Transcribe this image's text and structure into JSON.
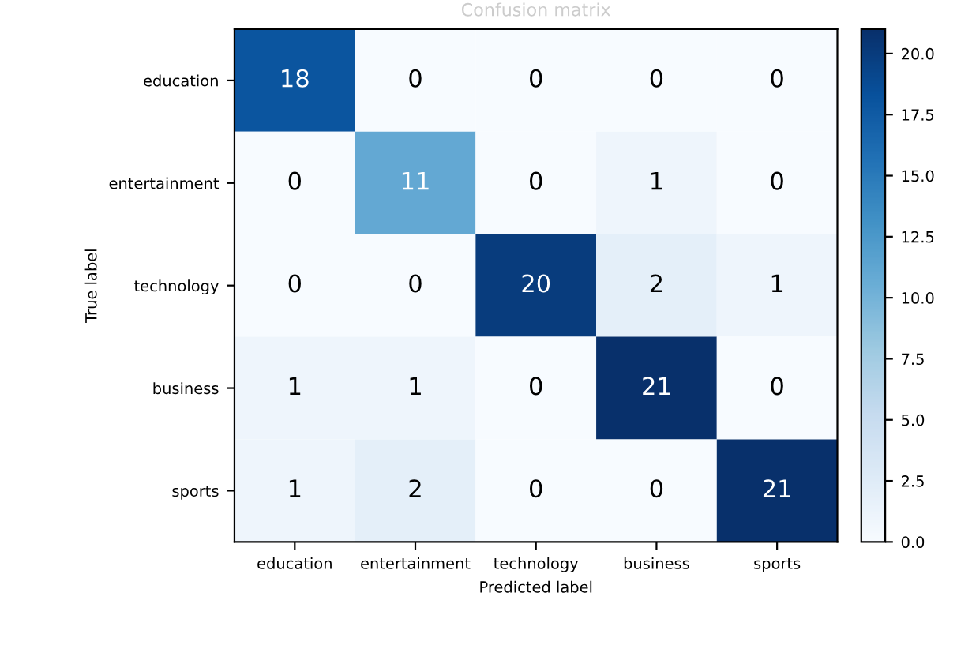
{
  "chart_data": {
    "type": "heatmap",
    "title": "Confusion matrix",
    "xlabel": "Predicted label",
    "ylabel": "True label",
    "categories": [
      "education",
      "entertainment",
      "technology",
      "business",
      "sports"
    ],
    "y_categories": [
      "education",
      "entertainment",
      "technology",
      "business",
      "sports"
    ],
    "cells": [
      [
        18,
        0,
        0,
        0,
        0
      ],
      [
        0,
        11,
        0,
        1,
        0
      ],
      [
        0,
        0,
        20,
        2,
        1
      ],
      [
        1,
        1,
        0,
        21,
        0
      ],
      [
        1,
        2,
        0,
        0,
        21
      ]
    ],
    "data_labels": true,
    "clim": [
      0,
      21
    ],
    "cticks": [
      {
        "value": 0,
        "label": "0.0"
      },
      2.5,
      {
        "value": 5,
        "label": "5.0"
      },
      7.5,
      {
        "value": 10,
        "label": "10.0"
      },
      12.5,
      {
        "value": 15,
        "label": "15.0"
      },
      17.5,
      {
        "value": 20,
        "label": "20.0"
      }
    ],
    "grid": false
  }
}
